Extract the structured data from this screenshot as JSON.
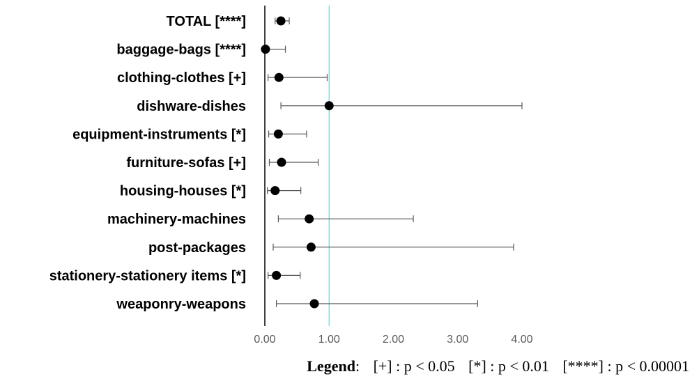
{
  "chart_data": {
    "type": "scatter",
    "title": "",
    "xlabel": "",
    "ylabel": "",
    "xlim": [
      0,
      4
    ],
    "x_ticks": [
      "0.00",
      "1.00",
      "2.00",
      "3.00",
      "4.00"
    ],
    "reference_line": 1.0,
    "categories": [
      "TOTAL [****]",
      "baggage-bags [****]",
      "clothing-clothes [+]",
      "dishware-dishes",
      "equipment-instruments [*]",
      "furniture-sofas [+]",
      "housing-houses [*]",
      "machinery-machines",
      "post-packages",
      "stationery-stationery items [*]",
      "weaponry-weapons"
    ],
    "series": [
      {
        "values": [
          0.25,
          0.01,
          0.22,
          1.0,
          0.21,
          0.26,
          0.16,
          0.69,
          0.72,
          0.18,
          0.77
        ],
        "lower": [
          0.16,
          0.0,
          0.05,
          0.25,
          0.06,
          0.07,
          0.04,
          0.21,
          0.13,
          0.05,
          0.18
        ],
        "upper": [
          0.38,
          0.32,
          0.97,
          4.0,
          0.65,
          0.83,
          0.56,
          2.31,
          3.87,
          0.55,
          3.31
        ]
      }
    ],
    "grid": false,
    "colors": {
      "marker": "#000000",
      "errorbar": "#595959",
      "reference": "#6fcfe0",
      "axis": "#000000"
    }
  },
  "legend": {
    "title": "Legend",
    "items": [
      "[+] : p < 0.05",
      "[*] : p < 0.01",
      "[****] : p < 0.00001"
    ]
  }
}
